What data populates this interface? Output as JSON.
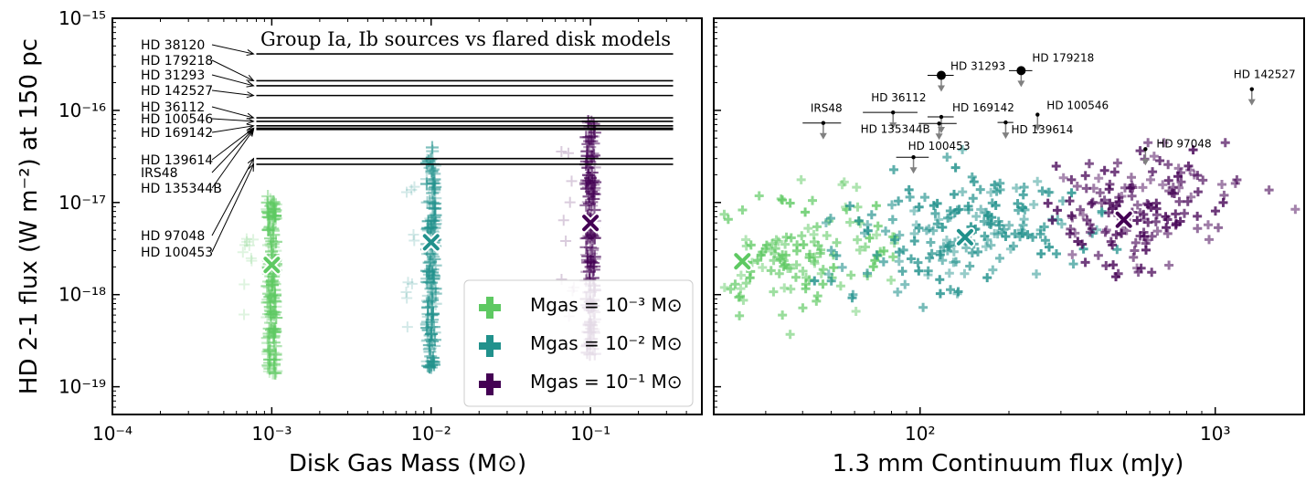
{
  "figure": {
    "panel_count": 2
  },
  "colors": {
    "low": "#5ec962",
    "mid": "#21918c",
    "high": "#440154",
    "limit_marker": "#000000",
    "limit_arrow": "#808080"
  },
  "chart_data": [
    {
      "type": "scatter",
      "title": "Group Ia, Ib sources vs flared disk models",
      "xlabel": "Disk Gas Mass (M⊙)",
      "ylabel": "HD 2-1 flux (W m⁻²) at 150 pc",
      "xscale": "log",
      "yscale": "log",
      "xlim": [
        0.0001,
        0.5
      ],
      "ylim": [
        5e-20,
        1e-15
      ],
      "xtick_labels": [
        "10⁻⁴",
        "10⁻³",
        "10⁻²",
        "10⁻¹"
      ],
      "xtick_values": [
        0.0001,
        0.001,
        0.01,
        0.1
      ],
      "ytick_labels": [
        "10⁻¹⁵",
        "10⁻¹⁶",
        "10⁻¹⁷",
        "10⁻¹⁸",
        "10⁻¹⁹"
      ],
      "ytick_values": [
        1e-15,
        1e-16,
        1e-17,
        1e-18,
        1e-19
      ],
      "series": [
        {
          "name": "M_gas = 10⁻³ M⊙",
          "color_key": "low",
          "legend_label": "Mgas = 10⁻³ M⊙",
          "mass": 0.001,
          "median_flux": 2.1e-18,
          "flux_range": [
            1.4e-19,
            1.2e-17
          ]
        },
        {
          "name": "M_gas = 10⁻² M⊙",
          "color_key": "mid",
          "legend_label": "Mgas = 10⁻² M⊙",
          "mass": 0.01,
          "median_flux": 3.7e-18,
          "flux_range": [
            1.6e-19,
            4e-17
          ]
        },
        {
          "name": "M_gas = 10⁻¹ M⊙",
          "color_key": "high",
          "legend_label": "Mgas = 10⁻¹ M⊙",
          "mass": 0.1,
          "median_flux": 6e-18,
          "flux_range": [
            2.2e-19,
            8e-17
          ]
        }
      ],
      "upper_limits": [
        {
          "name": "HD 38120",
          "flux": 4.1e-16
        },
        {
          "name": "HD 179218",
          "flux": 2.1e-16
        },
        {
          "name": "HD 31293",
          "flux": 1.85e-16
        },
        {
          "name": "HD 142527",
          "flux": 1.45e-16
        },
        {
          "name": "HD 36112",
          "flux": 8.3e-17
        },
        {
          "name": "HD 100546",
          "flux": 7.6e-17
        },
        {
          "name": "HD 169142",
          "flux": 6.8e-17
        },
        {
          "name": "HD 139614",
          "flux": 6.4e-17
        },
        {
          "name": "IRS48",
          "flux": 6.3e-17
        },
        {
          "name": "HD 135344B",
          "flux": 6.2e-17
        },
        {
          "name": "HD 97048",
          "flux": 3e-17
        },
        {
          "name": "HD 100453",
          "flux": 2.6e-17
        }
      ],
      "legend_position": "lower-right"
    },
    {
      "type": "scatter",
      "xlabel": "1.3 mm Continuum flux (mJy)",
      "xscale": "log",
      "yscale": "log",
      "xlim": [
        20,
        2000
      ],
      "ylim": [
        5e-20,
        1e-15
      ],
      "xtick_labels": [
        "10²",
        "10³"
      ],
      "xtick_values": [
        100,
        1000
      ],
      "model_medians": [
        {
          "color_key": "low",
          "continuum_mJy": 25,
          "flux": 2.3e-18
        },
        {
          "color_key": "mid",
          "continuum_mJy": 142,
          "flux": 4.2e-18
        },
        {
          "color_key": "high",
          "continuum_mJy": 490,
          "flux": 6.5e-18
        }
      ],
      "sources": [
        {
          "name": "HD 179218",
          "continuum_mJy": 220,
          "flux": 2.7e-16,
          "xerr_mJy": 20,
          "detected": true
        },
        {
          "name": "HD 31293",
          "continuum_mJy": 118,
          "flux": 2.4e-16,
          "xerr_mJy": 12,
          "detected": true
        },
        {
          "name": "HD 142527",
          "continuum_mJy": 1330,
          "flux": 1.7e-16,
          "xerr_mJy": 0,
          "detected": false
        },
        {
          "name": "HD 36112",
          "continuum_mJy": 81,
          "flux": 9.5e-17,
          "xerr_mJy": 17,
          "detected": false
        },
        {
          "name": "HD 100546",
          "continuum_mJy": 250,
          "flux": 9e-17,
          "xerr_mJy": 0,
          "detected": false
        },
        {
          "name": "HD 169142",
          "continuum_mJy": 118,
          "flux": 8.5e-17,
          "xerr_mJy": 12,
          "detected": false
        },
        {
          "name": "IRS48",
          "continuum_mJy": 47,
          "flux": 7.3e-17,
          "xerr_mJy": 7,
          "detected": false
        },
        {
          "name": "HD 135344B",
          "continuum_mJy": 116,
          "flux": 7.2e-17,
          "xerr_mJy": 17,
          "detected": false
        },
        {
          "name": "HD 139614",
          "continuum_mJy": 195,
          "flux": 7.4e-17,
          "xerr_mJy": 12,
          "detected": false
        },
        {
          "name": "HD 97048",
          "continuum_mJy": 580,
          "flux": 3.8e-17,
          "xerr_mJy": 0,
          "detected": false
        },
        {
          "name": "HD 100453",
          "continuum_mJy": 95,
          "flux": 3.1e-17,
          "xerr_mJy": 12,
          "detected": false
        }
      ]
    }
  ]
}
